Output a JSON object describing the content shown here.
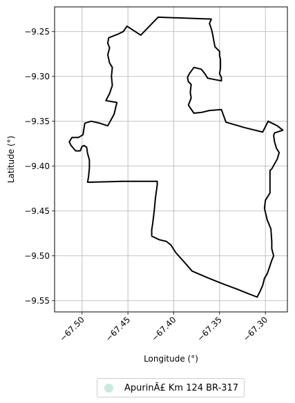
{
  "chart_data": {
    "type": "map",
    "title": "",
    "xlabel": "Longitude (°)",
    "ylabel": "Latitude (°)",
    "xlim": [
      -67.53,
      -67.276
    ],
    "ylim": [
      -9.5625,
      -9.2225
    ],
    "xticks": [
      -67.5,
      -67.45,
      -67.4,
      -67.35,
      -67.3
    ],
    "xtick_labels": [
      "−67.50",
      "−67.45",
      "−67.40",
      "−67.35",
      "−67.30"
    ],
    "yticks": [
      -9.25,
      -9.3,
      -9.35,
      -9.4,
      -9.45,
      -9.5,
      -9.55
    ],
    "ytick_labels": [
      "−9.25",
      "−9.30",
      "−9.35",
      "−9.40",
      "−9.45",
      "−9.50",
      "−9.55"
    ],
    "grid": true,
    "legend_position": "bottom-center",
    "series": [
      {
        "name": "ApurinÃ£ Km 124 BR-317",
        "edge_color": "#000000",
        "marker_color": "#c6ebdc",
        "boundary": [
          [
            -67.417,
            -9.234
          ],
          [
            -67.359,
            -9.236
          ],
          [
            -67.361,
            -9.241
          ],
          [
            -67.359,
            -9.247
          ],
          [
            -67.358,
            -9.251
          ],
          [
            -67.357,
            -9.256
          ],
          [
            -67.356,
            -9.262
          ],
          [
            -67.355,
            -9.267
          ],
          [
            -67.353,
            -9.269
          ],
          [
            -67.35,
            -9.272
          ],
          [
            -67.35,
            -9.277
          ],
          [
            -67.349,
            -9.281
          ],
          [
            -67.349,
            -9.285
          ],
          [
            -67.349,
            -9.291
          ],
          [
            -67.35,
            -9.297
          ],
          [
            -67.348,
            -9.301
          ],
          [
            -67.348,
            -9.305
          ],
          [
            -67.363,
            -9.302
          ],
          [
            -67.366,
            -9.297
          ],
          [
            -67.37,
            -9.292
          ],
          [
            -67.378,
            -9.29
          ],
          [
            -67.383,
            -9.297
          ],
          [
            -67.385,
            -9.301
          ],
          [
            -67.384,
            -9.306
          ],
          [
            -67.381,
            -9.309
          ],
          [
            -67.382,
            -9.318
          ],
          [
            -67.381,
            -9.324
          ],
          [
            -67.384,
            -9.332
          ],
          [
            -67.378,
            -9.341
          ],
          [
            -67.369,
            -9.34
          ],
          [
            -67.361,
            -9.338
          ],
          [
            -67.348,
            -9.337
          ],
          [
            -67.343,
            -9.351
          ],
          [
            -67.323,
            -9.357
          ],
          [
            -67.303,
            -9.362
          ],
          [
            -67.297,
            -9.35
          ],
          [
            -67.287,
            -9.355
          ],
          [
            -67.281,
            -9.36
          ],
          [
            -67.29,
            -9.363
          ],
          [
            -67.291,
            -9.366
          ],
          [
            -67.29,
            -9.373
          ],
          [
            -67.288,
            -9.38
          ],
          [
            -67.285,
            -9.385
          ],
          [
            -67.287,
            -9.392
          ],
          [
            -67.293,
            -9.403
          ],
          [
            -67.295,
            -9.405
          ],
          [
            -67.295,
            -9.416
          ],
          [
            -67.295,
            -9.43
          ],
          [
            -67.3,
            -9.438
          ],
          [
            -67.301,
            -9.447
          ],
          [
            -67.298,
            -9.46
          ],
          [
            -67.294,
            -9.47
          ],
          [
            -67.293,
            -9.484
          ],
          [
            -67.293,
            -9.492
          ],
          [
            -67.291,
            -9.5
          ],
          [
            -67.293,
            -9.505
          ],
          [
            -67.296,
            -9.514
          ],
          [
            -67.298,
            -9.52
          ],
          [
            -67.301,
            -9.525
          ],
          [
            -67.303,
            -9.533
          ],
          [
            -67.306,
            -9.54
          ],
          [
            -67.309,
            -9.546
          ],
          [
            -67.319,
            -9.542
          ],
          [
            -67.331,
            -9.537
          ],
          [
            -67.347,
            -9.531
          ],
          [
            -67.364,
            -9.524
          ],
          [
            -67.38,
            -9.517
          ],
          [
            -67.386,
            -9.51
          ],
          [
            -67.398,
            -9.496
          ],
          [
            -67.403,
            -9.488
          ],
          [
            -67.408,
            -9.484
          ],
          [
            -67.416,
            -9.482
          ],
          [
            -67.424,
            -9.478
          ],
          [
            -67.424,
            -9.471
          ],
          [
            -67.423,
            -9.464
          ],
          [
            -67.422,
            -9.456
          ],
          [
            -67.421,
            -9.447
          ],
          [
            -67.42,
            -9.436
          ],
          [
            -67.419,
            -9.428
          ],
          [
            -67.418,
            -9.421
          ],
          [
            -67.418,
            -9.417
          ],
          [
            -67.455,
            -9.417
          ],
          [
            -67.494,
            -9.418
          ],
          [
            -67.493,
            -9.412
          ],
          [
            -67.492,
            -9.402
          ],
          [
            -67.492,
            -9.393
          ],
          [
            -67.494,
            -9.386
          ],
          [
            -67.495,
            -9.379
          ],
          [
            -67.498,
            -9.377
          ],
          [
            -67.5,
            -9.378
          ],
          [
            -67.502,
            -9.383
          ],
          [
            -67.507,
            -9.383
          ],
          [
            -67.512,
            -9.377
          ],
          [
            -67.514,
            -9.373
          ],
          [
            -67.511,
            -9.368
          ],
          [
            -67.504,
            -9.368
          ],
          [
            -67.499,
            -9.365
          ],
          [
            -67.497,
            -9.352
          ],
          [
            -67.49,
            -9.35
          ],
          [
            -67.481,
            -9.352
          ],
          [
            -67.472,
            -9.355
          ],
          [
            -67.465,
            -9.342
          ],
          [
            -67.462,
            -9.329
          ],
          [
            -67.474,
            -9.327
          ],
          [
            -67.47,
            -9.319
          ],
          [
            -67.467,
            -9.31
          ],
          [
            -67.468,
            -9.3
          ],
          [
            -67.467,
            -9.29
          ],
          [
            -67.47,
            -9.285
          ],
          [
            -67.472,
            -9.276
          ],
          [
            -67.47,
            -9.268
          ],
          [
            -67.472,
            -9.263
          ],
          [
            -67.471,
            -9.257
          ],
          [
            -67.461,
            -9.253
          ],
          [
            -67.455,
            -9.25
          ],
          [
            -67.451,
            -9.244
          ],
          [
            -67.436,
            -9.254
          ],
          [
            -67.417,
            -9.234
          ]
        ]
      }
    ]
  }
}
